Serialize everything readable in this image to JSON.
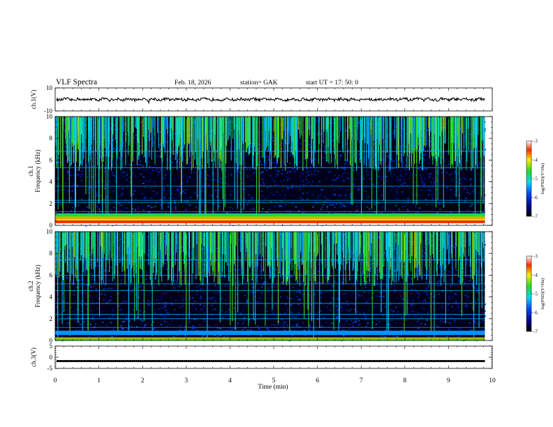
{
  "header": {
    "title": "VLF  Spectra",
    "date": "Feb. 18, 2026",
    "station": "station= GAK",
    "start_ut": "start  UT  =   17: 50: 0"
  },
  "chart_data": [
    {
      "type": "line",
      "name": "ch1-waveform",
      "ylabel": "ch.1(V)",
      "ylim": [
        -10,
        10
      ],
      "yticks": [
        10,
        -10
      ],
      "xlim": [
        0,
        9.83
      ],
      "baseline_value": 0,
      "amplitude_value": 1.2
    },
    {
      "type": "heatmap",
      "name": "ch1-spectrogram",
      "ylabel_top": "ch.1",
      "ylabel": "Frequency  (kHz)",
      "ylim": [
        0,
        10
      ],
      "yticks": [
        0,
        2,
        4,
        6,
        8,
        10
      ],
      "xlim": [
        0,
        9.83
      ],
      "colorbar": {
        "label": "log(PSD)(V²/Hz)",
        "range": [
          -7,
          -3
        ],
        "ticks": [
          -3,
          -4,
          -5,
          -6,
          -7
        ]
      },
      "strong_band_khz": [
        0.2,
        1.1
      ],
      "horizontal_lines_khz": [
        6.8,
        5.3,
        3.6,
        2.3,
        2.1,
        1.25
      ]
    },
    {
      "type": "heatmap",
      "name": "ch2-spectrogram",
      "ylabel_top": "ch.2",
      "ylabel": "Frequency  (kHz)",
      "ylim": [
        0,
        10
      ],
      "yticks": [
        0,
        2,
        4,
        6,
        8,
        10
      ],
      "xlim": [
        0,
        9.83
      ],
      "colorbar": {
        "label": "log(PSD)(V²/Hz)",
        "range": [
          -7,
          -3
        ],
        "ticks": [
          -3,
          -4,
          -5,
          -6,
          -7
        ]
      },
      "strong_band_khz": [
        0.0,
        0.3
      ],
      "horizontal_lines_khz": [
        7.4,
        6.0,
        5.2,
        4.6,
        3.4,
        2.4,
        2.0,
        1.2,
        0.8
      ]
    },
    {
      "type": "line",
      "name": "ch3-waveform",
      "ylabel": "ch.3(V)",
      "ylim": [
        -5,
        5
      ],
      "yticks": [
        5,
        0,
        -5
      ],
      "xlim": [
        0,
        9.83
      ],
      "baseline_value": -1.7
    }
  ],
  "x_axis": {
    "label": "Time  (min)",
    "ticks": [
      0,
      1,
      2,
      3,
      4,
      5,
      6,
      7,
      8,
      9,
      10
    ],
    "range": [
      0,
      10
    ]
  }
}
